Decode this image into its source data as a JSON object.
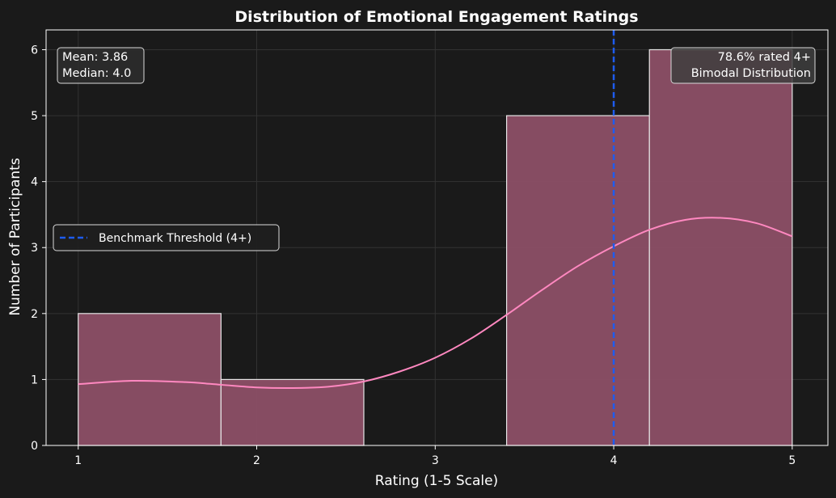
{
  "chart_data": {
    "type": "bar",
    "title": "Distribution of Emotional Engagement Ratings",
    "xlabel": "Rating (1-5 Scale)",
    "ylabel": "Number of Participants",
    "xlim": [
      0.82,
      5.2
    ],
    "ylim": [
      0,
      6.3
    ],
    "x_ticks": [
      1,
      2,
      3,
      4,
      5
    ],
    "y_ticks": [
      0,
      1,
      2,
      3,
      4,
      5,
      6
    ],
    "grid": true,
    "bins": [
      {
        "start": 1.0,
        "end": 1.8,
        "count": 2
      },
      {
        "start": 1.8,
        "end": 2.6,
        "count": 1
      },
      {
        "start": 2.6,
        "end": 3.4,
        "count": 0
      },
      {
        "start": 3.4,
        "end": 4.2,
        "count": 5
      },
      {
        "start": 4.2,
        "end": 5.0,
        "count": 6
      }
    ],
    "kde": {
      "x": [
        1.0,
        1.3,
        1.6,
        1.8,
        2.0,
        2.2,
        2.4,
        2.6,
        2.8,
        3.0,
        3.2,
        3.4,
        3.6,
        3.8,
        4.0,
        4.2,
        4.4,
        4.6,
        4.8,
        5.0
      ],
      "y": [
        0.93,
        0.98,
        0.96,
        0.92,
        0.88,
        0.87,
        0.89,
        0.97,
        1.12,
        1.33,
        1.62,
        1.98,
        2.36,
        2.72,
        3.02,
        3.27,
        3.42,
        3.45,
        3.37,
        3.17
      ]
    },
    "threshold": {
      "value": 4,
      "label": "Benchmark Threshold (4+)",
      "color": "#1e5cf0"
    },
    "colors": {
      "background": "#1a1a1a",
      "bar_fill": "#8c4f66",
      "bar_edge": "#e6e6e6",
      "kde_line": "#ff88c0",
      "grid": "#333333",
      "text": "#ffffff"
    }
  },
  "annotations": {
    "stats_left": [
      "Mean: 3.86",
      "Median: 4.0"
    ],
    "stats_right": [
      "78.6% rated 4+",
      "Bimodal Distribution"
    ]
  },
  "legend": {
    "entries": [
      {
        "label": "Benchmark Threshold (4+)",
        "style": "dashed",
        "color": "#1e5cf0"
      }
    ],
    "placement": "center-left"
  }
}
